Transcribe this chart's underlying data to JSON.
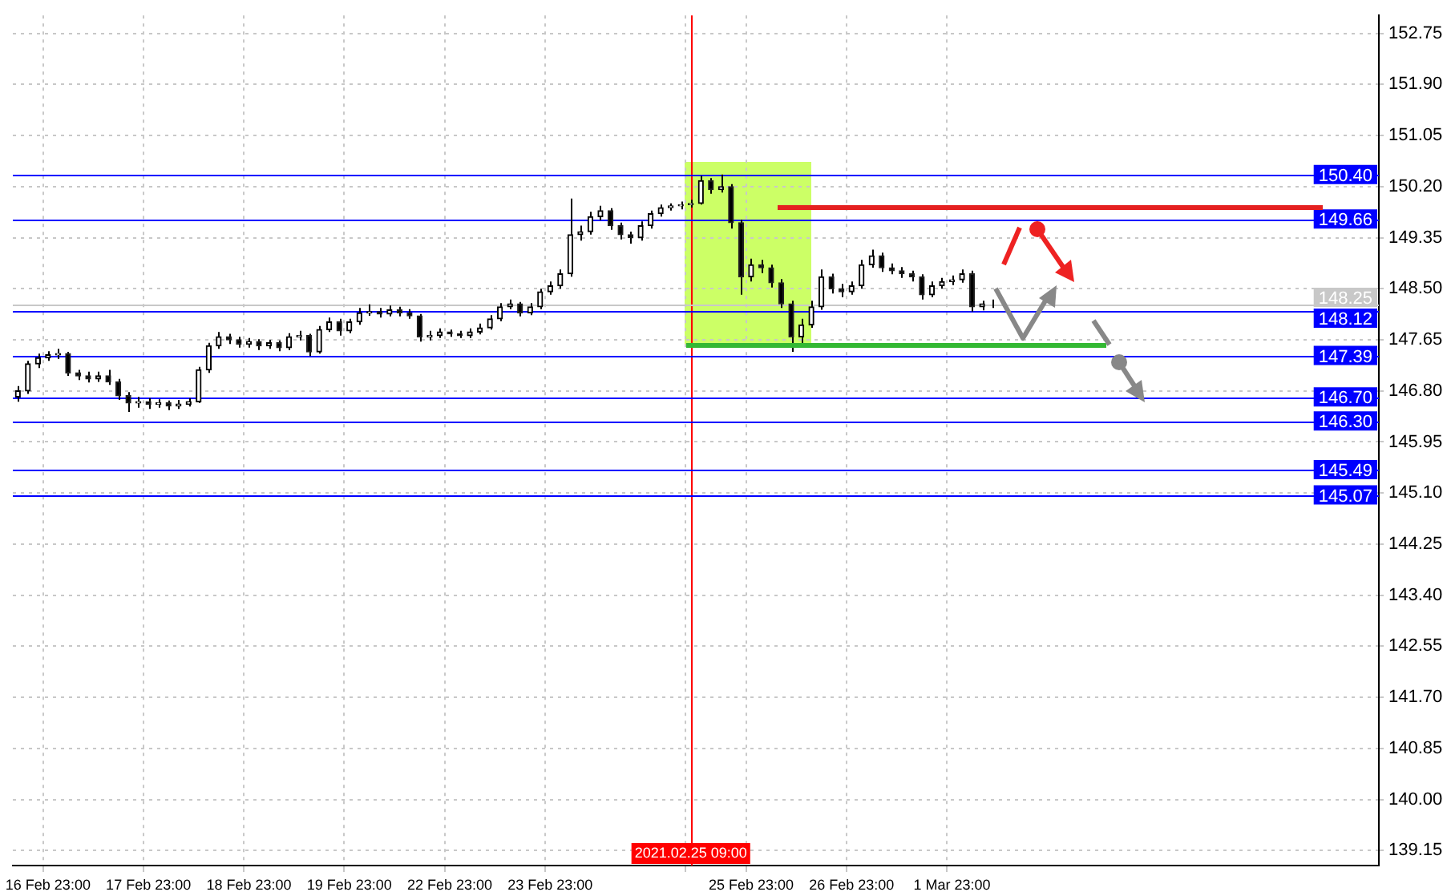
{
  "chart_data": {
    "type": "candlestick",
    "categories": [
      null,
      null,
      null,
      "16 Feb 23:00",
      null,
      null,
      null,
      null,
      null,
      null,
      null,
      null,
      null,
      "17 Feb 23:00",
      null,
      null,
      null,
      null,
      null,
      null,
      null,
      null,
      null,
      "18 Feb 23:00",
      null,
      null,
      null,
      null,
      null,
      null,
      null,
      null,
      null,
      "19 Feb 23:00",
      null,
      null,
      null,
      null,
      null,
      null,
      null,
      null,
      null,
      "22 Feb 23:00",
      null,
      null,
      null,
      null,
      null,
      null,
      null,
      null,
      null,
      "23 Feb 23:00",
      null,
      null,
      null,
      null,
      null,
      null,
      null,
      null,
      null,
      null,
      null,
      null,
      null,
      "2021.02.25 09:00",
      null,
      null,
      null,
      null,
      null,
      "25 Feb 23:00",
      null,
      null,
      null,
      null,
      null,
      null,
      null,
      null,
      null,
      "26 Feb 23:00",
      null,
      null,
      null,
      null,
      null,
      null,
      null,
      null,
      null,
      "1 Mar 23:00",
      null,
      null,
      null,
      null,
      null,
      null,
      null,
      null,
      null,
      null,
      null,
      null,
      null,
      null,
      null,
      null,
      null,
      null,
      null,
      null,
      null,
      null,
      null,
      null,
      null,
      null,
      null,
      null,
      null,
      null,
      null,
      null,
      null,
      null,
      null,
      null,
      null,
      null,
      null,
      null,
      null,
      null
    ],
    "ohlc": [
      [
        146.7,
        146.88,
        146.62,
        146.8
      ],
      [
        146.8,
        147.3,
        146.75,
        147.25
      ],
      [
        147.25,
        147.42,
        147.18,
        147.35
      ],
      [
        147.35,
        147.46,
        147.3,
        147.4
      ],
      [
        147.4,
        147.5,
        147.33,
        147.42
      ],
      [
        147.42,
        147.45,
        147.05,
        147.1
      ],
      [
        147.1,
        147.15,
        146.98,
        147.05
      ],
      [
        147.05,
        147.12,
        146.94,
        147.0
      ],
      [
        147.0,
        147.12,
        146.95,
        147.05
      ],
      [
        147.05,
        147.15,
        146.9,
        146.95
      ],
      [
        146.95,
        147.0,
        146.65,
        146.72
      ],
      [
        146.72,
        146.78,
        146.45,
        146.6
      ],
      [
        146.6,
        146.7,
        146.52,
        146.62
      ],
      [
        146.62,
        146.68,
        146.5,
        146.58
      ],
      [
        146.58,
        146.66,
        146.52,
        146.6
      ],
      [
        146.6,
        146.64,
        146.48,
        146.55
      ],
      [
        146.55,
        146.65,
        146.5,
        146.58
      ],
      [
        146.58,
        146.68,
        146.54,
        146.62
      ],
      [
        146.62,
        147.2,
        146.6,
        147.15
      ],
      [
        147.15,
        147.6,
        147.1,
        147.55
      ],
      [
        147.55,
        147.78,
        147.5,
        147.7
      ],
      [
        147.7,
        147.75,
        147.58,
        147.65
      ],
      [
        147.65,
        147.7,
        147.52,
        147.58
      ],
      [
        147.58,
        147.68,
        147.52,
        147.62
      ],
      [
        147.62,
        147.66,
        147.48,
        147.55
      ],
      [
        147.55,
        147.65,
        147.5,
        147.6
      ],
      [
        147.6,
        147.64,
        147.46,
        147.52
      ],
      [
        147.52,
        147.76,
        147.48,
        147.7
      ],
      [
        147.7,
        147.8,
        147.64,
        147.72
      ],
      [
        147.72,
        147.75,
        147.38,
        147.45
      ],
      [
        147.45,
        147.88,
        147.42,
        147.82
      ],
      [
        147.82,
        148.02,
        147.78,
        147.95
      ],
      [
        147.95,
        148.0,
        147.72,
        147.8
      ],
      [
        147.8,
        148.0,
        147.76,
        147.95
      ],
      [
        147.95,
        148.18,
        147.9,
        148.1
      ],
      [
        148.1,
        148.24,
        148.05,
        148.12
      ],
      [
        148.12,
        148.18,
        148.02,
        148.08
      ],
      [
        148.08,
        148.22,
        148.04,
        148.15
      ],
      [
        148.15,
        148.2,
        148.04,
        148.1
      ],
      [
        148.1,
        148.16,
        148.0,
        148.05
      ],
      [
        148.05,
        148.08,
        147.62,
        147.7
      ],
      [
        147.7,
        147.8,
        147.64,
        147.72
      ],
      [
        147.72,
        147.84,
        147.68,
        147.78
      ],
      [
        147.78,
        147.82,
        147.7,
        147.75
      ],
      [
        147.75,
        147.8,
        147.68,
        147.72
      ],
      [
        147.72,
        147.84,
        147.68,
        147.78
      ],
      [
        147.78,
        147.92,
        147.74,
        147.85
      ],
      [
        147.85,
        148.06,
        147.82,
        148.0
      ],
      [
        148.0,
        148.26,
        147.96,
        148.2
      ],
      [
        148.2,
        148.32,
        148.16,
        148.25
      ],
      [
        148.25,
        148.28,
        148.04,
        148.1
      ],
      [
        148.1,
        148.26,
        148.06,
        148.2
      ],
      [
        148.2,
        148.5,
        148.16,
        148.45
      ],
      [
        148.45,
        148.62,
        148.4,
        148.55
      ],
      [
        148.55,
        148.82,
        148.5,
        148.75
      ],
      [
        148.75,
        150.0,
        148.7,
        149.4
      ],
      [
        149.4,
        149.55,
        149.3,
        149.45
      ],
      [
        149.45,
        149.78,
        149.4,
        149.7
      ],
      [
        149.7,
        149.88,
        149.64,
        149.8
      ],
      [
        149.8,
        149.84,
        149.48,
        149.55
      ],
      [
        149.55,
        149.6,
        149.32,
        149.4
      ],
      [
        149.4,
        149.45,
        149.25,
        149.35
      ],
      [
        149.35,
        149.62,
        149.3,
        149.55
      ],
      [
        149.55,
        149.8,
        149.5,
        149.75
      ],
      [
        149.75,
        149.9,
        149.7,
        149.85
      ],
      [
        149.85,
        149.92,
        149.8,
        149.88
      ],
      [
        149.88,
        149.95,
        149.82,
        149.9
      ],
      [
        149.9,
        149.98,
        149.85,
        149.92
      ],
      [
        149.92,
        150.38,
        149.9,
        150.3
      ],
      [
        150.3,
        150.34,
        150.08,
        150.15
      ],
      [
        150.15,
        150.4,
        150.1,
        150.2
      ],
      [
        150.2,
        150.24,
        149.5,
        149.6
      ],
      [
        149.6,
        149.65,
        148.4,
        148.7
      ],
      [
        148.7,
        149.0,
        148.62,
        148.9
      ],
      [
        148.9,
        148.98,
        148.76,
        148.85
      ],
      [
        148.85,
        148.9,
        148.52,
        148.6
      ],
      [
        148.6,
        148.66,
        148.18,
        148.25
      ],
      [
        148.25,
        148.3,
        147.45,
        147.7
      ],
      [
        147.7,
        148.0,
        147.55,
        147.9
      ],
      [
        147.9,
        148.3,
        147.85,
        148.2
      ],
      [
        148.2,
        148.82,
        148.15,
        148.7
      ],
      [
        148.7,
        148.75,
        148.42,
        148.5
      ],
      [
        148.5,
        148.58,
        148.36,
        148.45
      ],
      [
        148.45,
        148.62,
        148.4,
        148.55
      ],
      [
        148.55,
        148.98,
        148.5,
        148.9
      ],
      [
        148.9,
        149.15,
        148.85,
        149.05
      ],
      [
        149.05,
        149.1,
        148.78,
        148.85
      ],
      [
        148.85,
        148.92,
        148.74,
        148.8
      ],
      [
        148.8,
        148.86,
        148.68,
        148.75
      ],
      [
        148.75,
        148.8,
        148.62,
        148.7
      ],
      [
        148.7,
        148.74,
        148.32,
        148.4
      ],
      [
        148.4,
        148.62,
        148.36,
        148.55
      ],
      [
        148.55,
        148.68,
        148.5,
        148.62
      ],
      [
        148.62,
        148.72,
        148.56,
        148.65
      ],
      [
        148.65,
        148.82,
        148.6,
        148.75
      ],
      [
        148.75,
        148.8,
        148.12,
        148.2
      ],
      [
        148.2,
        148.3,
        148.14,
        148.25
      ],
      [
        148.25,
        148.32,
        148.18,
        148.25
      ],
      null,
      null,
      null,
      null,
      null,
      null,
      null,
      null,
      null,
      null,
      null,
      null,
      null,
      null,
      null,
      null,
      null,
      null,
      null,
      null,
      null,
      null,
      null,
      null,
      null,
      null,
      null,
      null,
      null,
      null,
      null,
      null,
      null,
      null,
      null,
      null,
      null,
      null
    ],
    "ylim": [
      138.9,
      153.05
    ],
    "yticks": [
      {
        "value": 152.75,
        "label": "152.75"
      },
      {
        "value": 151.9,
        "label": "151.90"
      },
      {
        "value": 151.05,
        "label": "151.05"
      },
      {
        "value": 150.2,
        "label": "150.20"
      },
      {
        "value": 149.35,
        "label": "149.35"
      },
      {
        "value": 148.5,
        "label": "148.50"
      },
      {
        "value": 147.65,
        "label": "147.65"
      },
      {
        "value": 146.8,
        "label": "146.80"
      },
      {
        "value": 145.95,
        "label": "145.95"
      },
      {
        "value": 145.1,
        "label": "145.10"
      },
      {
        "value": 144.25,
        "label": "144.25"
      },
      {
        "value": 143.4,
        "label": "143.40"
      },
      {
        "value": 142.55,
        "label": "142.55"
      },
      {
        "value": 141.7,
        "label": "141.70"
      },
      {
        "value": 140.85,
        "label": "140.85"
      },
      {
        "value": 140,
        "label": "140.00"
      },
      {
        "value": 139.15,
        "label": "139.15"
      }
    ],
    "grid": true,
    "ref_lines": [
      {
        "axis": "x",
        "value": "2021.02.25 09:00",
        "color": "#ff0000"
      },
      {
        "axis": "y",
        "value": 148.25,
        "label": "148.25",
        "color": "#c8c8c8"
      },
      {
        "axis": "y",
        "value": 150.4,
        "label": "150.40",
        "color": "#0000ff"
      },
      {
        "axis": "y",
        "value": 149.66,
        "label": "149.66",
        "color": "#0000ff"
      },
      {
        "axis": "y",
        "value": 148.12,
        "label": "148.12",
        "color": "#0000ff"
      },
      {
        "axis": "y",
        "value": 147.39,
        "label": "147.39",
        "color": "#0000ff"
      },
      {
        "axis": "y",
        "value": 146.7,
        "label": "146.70",
        "color": "#0000ff"
      },
      {
        "axis": "y",
        "value": 146.3,
        "label": "146.30",
        "color": "#0000ff"
      },
      {
        "axis": "y",
        "value": 145.49,
        "label": "145.49",
        "color": "#0000ff"
      },
      {
        "axis": "y",
        "value": 145.07,
        "label": "145.07",
        "color": "#0000ff"
      }
    ]
  }
}
